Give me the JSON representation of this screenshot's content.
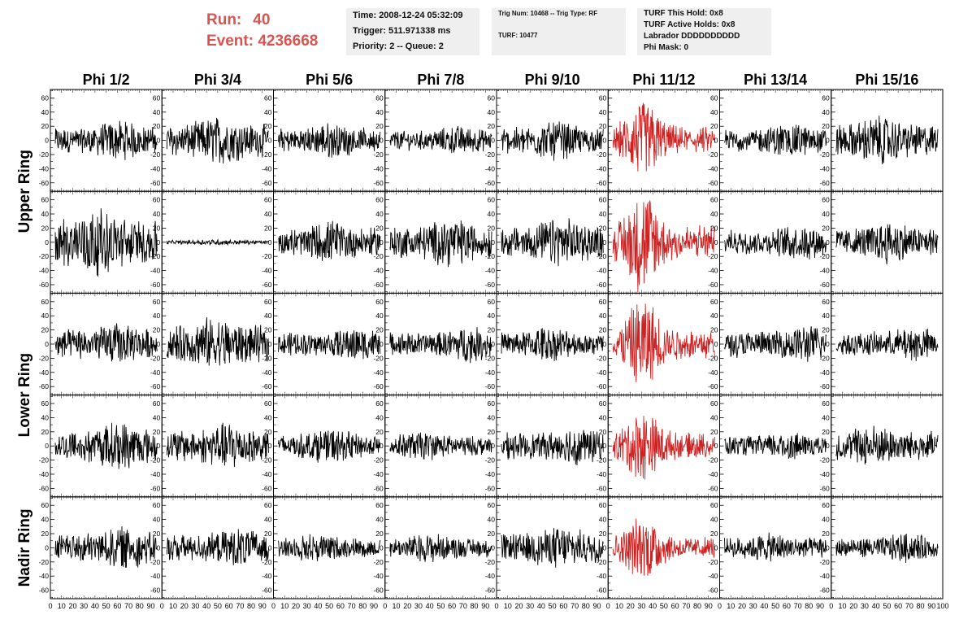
{
  "header": {
    "run_label": "Run:",
    "run_value": "40",
    "event_label": "Event:",
    "event_value": "4236668",
    "time": "Time: 2008-12-24 05:32:09",
    "trigger": "Trigger: 511.971338 ms",
    "priority": "Priority: 2 -- Queue: 2",
    "trig_num": "Trig Num: 10468 -- Trig Type: RF",
    "turf": "TURF: 10477",
    "turf_this_hold": "TURF This Hold: 0x8",
    "turf_active_holds": "TURF Active Holds: 0x8",
    "labrador": "Labrador DDDDDDDDDD",
    "phi_mask": "Phi Mask: 0"
  },
  "chart_data": {
    "type": "line",
    "columns": [
      "Phi 1/2",
      "Phi 3/4",
      "Phi 5/6",
      "Phi 7/8",
      "Phi 9/10",
      "Phi 11/12",
      "Phi 13/14",
      "Phi 15/16"
    ],
    "ring_labels": [
      "Upper Ring",
      "Lower Ring",
      "Nadir Ring"
    ],
    "rows": 5,
    "row_ring_groups": [
      [
        0,
        1
      ],
      [
        2,
        3
      ],
      [
        4
      ]
    ],
    "y_ticks": [
      "60",
      "40",
      "20",
      "0",
      "-20",
      "-40",
      "-60"
    ],
    "x_tick_labels": [
      "0",
      "10",
      "20",
      "30",
      "40",
      "50",
      "60",
      "70",
      "80",
      "90",
      "100"
    ],
    "xlim": [
      0,
      100
    ],
    "ylim": [
      -72,
      72
    ],
    "highlight_column": 5,
    "colors": {
      "normal": "#000000",
      "highlight": "#cc2222",
      "run": "#d9534f"
    },
    "waveform_amplitude": [
      [
        20,
        25,
        18,
        15,
        20,
        30,
        18,
        25
      ],
      [
        35,
        3,
        22,
        25,
        25,
        40,
        18,
        22
      ],
      [
        22,
        28,
        18,
        18,
        18,
        35,
        20,
        18
      ],
      [
        25,
        25,
        18,
        15,
        20,
        28,
        15,
        22
      ],
      [
        22,
        20,
        15,
        15,
        22,
        25,
        15,
        15
      ]
    ]
  }
}
